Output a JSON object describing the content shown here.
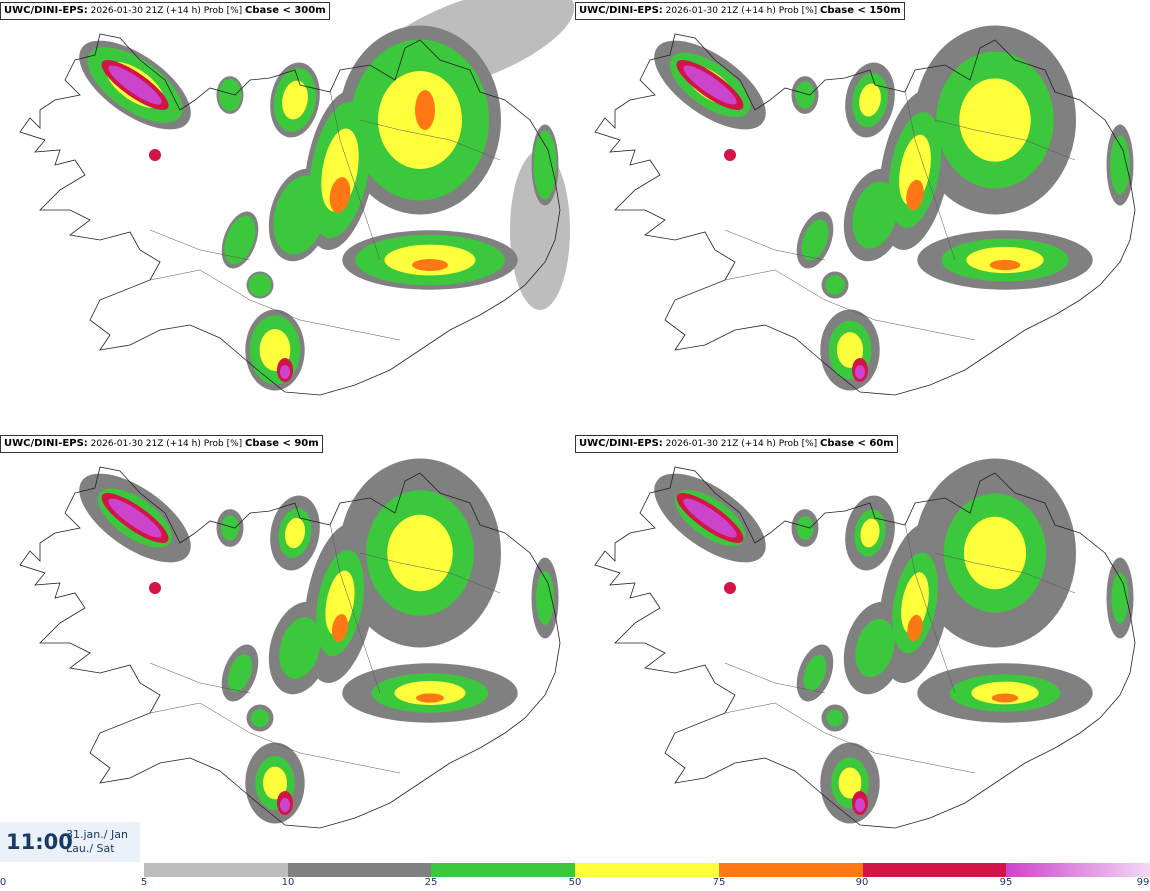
{
  "panels": [
    {
      "model": "UWC/DINI-EPS:",
      "info": "2026-01-30 21Z (+14 h) Prob [%]",
      "variable": "Cbase < 300m"
    },
    {
      "model": "UWC/DINI-EPS:",
      "info": "2026-01-30 21Z (+14 h) Prob [%]",
      "variable": "Cbase < 150m"
    },
    {
      "model": "UWC/DINI-EPS:",
      "info": "2026-01-30 21Z (+14 h) Prob [%]",
      "variable": "Cbase < 90m"
    },
    {
      "model": "UWC/DINI-EPS:",
      "info": "2026-01-30 21Z (+14 h) Prob [%]",
      "variable": "Cbase < 60m"
    }
  ],
  "valid_time": {
    "time": "11:00",
    "date_line1": "31.jan./ Jan",
    "date_line2": "Lau./ Sat"
  },
  "colorbar": {
    "ticks": [
      "0",
      "5",
      "10",
      "25",
      "50",
      "75",
      "90",
      "95",
      "99"
    ],
    "colors": [
      "#bdbdbd",
      "#808080",
      "#3cc83c",
      "#ffff3c",
      "#ff7814",
      "#d21446",
      "#cc44cc"
    ]
  }
}
